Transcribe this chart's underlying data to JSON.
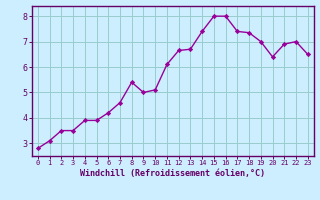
{
  "x": [
    0,
    1,
    2,
    3,
    4,
    5,
    6,
    7,
    8,
    9,
    10,
    11,
    12,
    13,
    14,
    15,
    16,
    17,
    18,
    19,
    20,
    21,
    22,
    23
  ],
  "y": [
    2.8,
    3.1,
    3.5,
    3.5,
    3.9,
    3.9,
    4.2,
    4.6,
    5.4,
    5.0,
    5.1,
    6.1,
    6.65,
    6.7,
    7.4,
    8.0,
    8.0,
    7.4,
    7.35,
    7.0,
    6.4,
    6.9,
    7.0,
    6.5
  ],
  "xlabel": "Windchill (Refroidissement éolien,°C)",
  "ylim": [
    2.5,
    8.4
  ],
  "xlim": [
    -0.5,
    23.5
  ],
  "yticks": [
    3,
    4,
    5,
    6,
    7,
    8
  ],
  "xticks": [
    0,
    1,
    2,
    3,
    4,
    5,
    6,
    7,
    8,
    9,
    10,
    11,
    12,
    13,
    14,
    15,
    16,
    17,
    18,
    19,
    20,
    21,
    22,
    23
  ],
  "line_color": "#990099",
  "marker_color": "#990099",
  "bg_color": "#cceeff",
  "grid_color": "#99cccc",
  "axis_border_color": "#660066",
  "label_color": "#660066",
  "tick_fontsize": 5.0,
  "xlabel_fontsize": 6.0
}
